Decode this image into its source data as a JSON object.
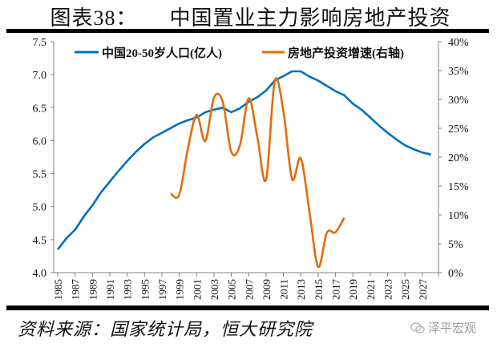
{
  "header": {
    "figure_label": "图表38：",
    "title": "中国置业主力影响房地产投资"
  },
  "footer": {
    "source": "资料来源：国家统计局，恒大研究院",
    "watermark": "泽平宏观",
    "watermark_icon": "wechat-icon"
  },
  "colors": {
    "population": "#0070C0",
    "investment": "#E36C0A",
    "axis": "#808080"
  },
  "chart_data": {
    "type": "line",
    "title": "中国置业主力影响房地产投资",
    "legend_position": "top",
    "grid": false,
    "x_ticks": [
      "1985",
      "1987",
      "1989",
      "1991",
      "1993",
      "1995",
      "1997",
      "1999",
      "2001",
      "2003",
      "2005",
      "2007",
      "2009",
      "2011",
      "2013",
      "2015",
      "2017",
      "2019",
      "2021",
      "2023",
      "2025",
      "2027"
    ],
    "left_axis": {
      "ylim": [
        4.0,
        7.5
      ],
      "ticks": [
        "4.0",
        "4.5",
        "5.0",
        "5.5",
        "6.0",
        "6.5",
        "7.0",
        "7.5"
      ]
    },
    "right_axis": {
      "ylim": [
        0,
        40
      ],
      "ticks": [
        "0%",
        "5%",
        "10%",
        "15%",
        "20%",
        "25%",
        "30%",
        "35%",
        "40%"
      ]
    },
    "series": [
      {
        "name": "中国20-50岁人口(亿人)",
        "axis": "left",
        "x": [
          1985,
          1986,
          1987,
          1988,
          1989,
          1990,
          1991,
          1992,
          1993,
          1994,
          1995,
          1996,
          1997,
          1998,
          1999,
          2000,
          2001,
          2002,
          2003,
          2004,
          2005,
          2006,
          2007,
          2008,
          2009,
          2010,
          2011,
          2012,
          2013,
          2014,
          2015,
          2016,
          2017,
          2018,
          2019,
          2020,
          2021,
          2022,
          2023,
          2024,
          2025,
          2026,
          2027,
          2028
        ],
        "values": [
          4.35,
          4.52,
          4.65,
          4.85,
          5.02,
          5.22,
          5.38,
          5.54,
          5.69,
          5.83,
          5.95,
          6.05,
          6.12,
          6.19,
          6.26,
          6.31,
          6.35,
          6.43,
          6.47,
          6.5,
          6.43,
          6.49,
          6.59,
          6.66,
          6.76,
          6.91,
          6.98,
          7.05,
          7.05,
          6.97,
          6.91,
          6.83,
          6.75,
          6.69,
          6.56,
          6.47,
          6.35,
          6.23,
          6.12,
          6.02,
          5.93,
          5.87,
          5.82,
          5.79
        ]
      },
      {
        "name": "房地产投资增速(右轴)",
        "axis": "right",
        "x": [
          1998,
          1999,
          2000,
          2001,
          2002,
          2003,
          2004,
          2005,
          2006,
          2007,
          2008,
          2009,
          2010,
          2011,
          2012,
          2013,
          2014,
          2015,
          2016,
          2017,
          2018
        ],
        "values": [
          13.7,
          13.5,
          21.5,
          27.3,
          22.8,
          30.3,
          29.6,
          20.9,
          22.1,
          30.2,
          23.4,
          16.1,
          33.2,
          27.9,
          16.2,
          19.8,
          10.5,
          1.0,
          6.9,
          7.0,
          9.5
        ]
      }
    ]
  }
}
